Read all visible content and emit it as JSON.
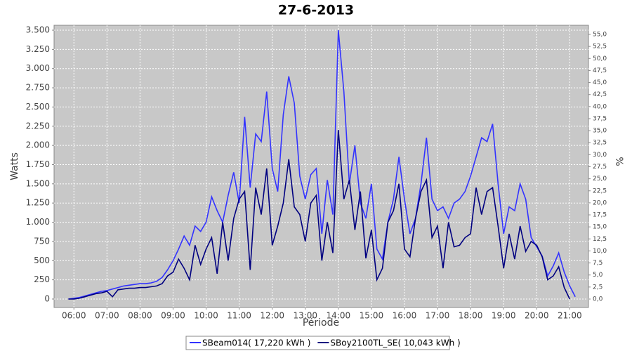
{
  "chart_data": {
    "type": "line",
    "title": "27-6-2013",
    "x_label": "Période",
    "y_label": "Watts",
    "y2_label": "%",
    "x": [
      "05:50",
      "06:00",
      "06:10",
      "06:20",
      "06:30",
      "06:40",
      "06:50",
      "07:00",
      "07:10",
      "07:20",
      "07:30",
      "07:40",
      "07:50",
      "08:00",
      "08:10",
      "08:20",
      "08:30",
      "08:40",
      "08:50",
      "09:00",
      "09:10",
      "09:20",
      "09:30",
      "09:40",
      "09:50",
      "10:00",
      "10:10",
      "10:20",
      "10:30",
      "10:40",
      "10:50",
      "11:00",
      "11:10",
      "11:20",
      "11:30",
      "11:40",
      "11:50",
      "12:00",
      "12:10",
      "12:20",
      "12:30",
      "12:40",
      "12:50",
      "13:00",
      "13:10",
      "13:20",
      "13:30",
      "13:40",
      "13:50",
      "14:00",
      "14:10",
      "14:20",
      "14:30",
      "14:40",
      "14:50",
      "15:00",
      "15:10",
      "15:20",
      "15:30",
      "15:40",
      "15:50",
      "16:00",
      "16:10",
      "16:20",
      "16:30",
      "16:40",
      "16:50",
      "17:00",
      "17:10",
      "17:20",
      "17:30",
      "17:40",
      "17:50",
      "18:00",
      "18:10",
      "18:20",
      "18:30",
      "18:40",
      "18:50",
      "19:00",
      "19:10",
      "19:20",
      "19:30",
      "19:40",
      "19:50",
      "20:00",
      "20:10",
      "20:20",
      "20:30",
      "20:40",
      "20:50",
      "21:00",
      "21:10"
    ],
    "series": [
      {
        "name": "SBeam014( 17,220 kWh )",
        "color": "#3333ff",
        "values": [
          0,
          10,
          20,
          40,
          60,
          80,
          100,
          110,
          130,
          150,
          170,
          180,
          190,
          200,
          200,
          210,
          230,
          280,
          380,
          500,
          650,
          820,
          700,
          950,
          880,
          1000,
          1330,
          1150,
          1000,
          1350,
          1650,
          1250,
          2370,
          1450,
          2150,
          2050,
          2700,
          1700,
          1400,
          2400,
          2900,
          2550,
          1600,
          1300,
          1620,
          1700,
          850,
          1550,
          1100,
          3500,
          2700,
          1500,
          2000,
          1250,
          1050,
          1500,
          650,
          520,
          1000,
          1300,
          1850,
          1300,
          850,
          1050,
          1500,
          2100,
          1300,
          1150,
          1200,
          1050,
          1250,
          1300,
          1400,
          1600,
          1850,
          2100,
          2050,
          2280,
          1500,
          850,
          1200,
          1150,
          1500,
          1300,
          800,
          680,
          560,
          300,
          430,
          600,
          350,
          170,
          30
        ]
      },
      {
        "name": "SBoy2100TL_SE( 10,043 kWh )",
        "color": "#000080",
        "values": [
          0,
          0,
          10,
          30,
          50,
          70,
          80,
          100,
          30,
          120,
          130,
          140,
          140,
          150,
          150,
          160,
          170,
          200,
          300,
          350,
          520,
          400,
          250,
          700,
          450,
          650,
          800,
          330,
          1000,
          500,
          1050,
          1300,
          1400,
          380,
          1450,
          1100,
          1700,
          700,
          950,
          1250,
          1820,
          1200,
          1100,
          750,
          1250,
          1350,
          500,
          1000,
          600,
          2200,
          1300,
          1550,
          900,
          1400,
          530,
          900,
          250,
          400,
          1000,
          1150,
          1500,
          650,
          550,
          1050,
          1400,
          1550,
          800,
          950,
          400,
          1000,
          680,
          700,
          800,
          850,
          1450,
          1100,
          1400,
          1450,
          950,
          400,
          850,
          520,
          950,
          620,
          750,
          700,
          550,
          250,
          300,
          420,
          150,
          0,
          null
        ]
      }
    ],
    "xlim": [
      "05:24",
      "21:34"
    ],
    "xticks": [
      "06:00",
      "07:00",
      "08:00",
      "09:00",
      "10:00",
      "11:00",
      "12:00",
      "13:00",
      "14:00",
      "15:00",
      "16:00",
      "17:00",
      "18:00",
      "19:00",
      "20:00",
      "21:00"
    ],
    "ylim": [
      -110,
      3564
    ],
    "yticks": [
      0,
      250,
      500,
      750,
      {
        "value": 1000,
        "label": "1.000"
      },
      {
        "value": 1250,
        "label": "1.250"
      },
      {
        "value": 1500,
        "label": "1.500"
      },
      {
        "value": 1750,
        "label": "1.750"
      },
      {
        "value": 2000,
        "label": "2.000"
      },
      {
        "value": 2250,
        "label": "2.250"
      },
      {
        "value": 2500,
        "label": "2.500"
      },
      {
        "value": 2750,
        "label": "2.750"
      },
      {
        "value": 3000,
        "label": "3.000"
      },
      {
        "value": 3250,
        "label": "3.250"
      },
      {
        "value": 3500,
        "label": "3.500"
      }
    ],
    "y2lim": [
      -1.75,
      56.9
    ],
    "y2ticks": [
      {
        "value": 0,
        "label": "0,0"
      },
      {
        "value": 2.5,
        "label": "2,5"
      },
      {
        "value": 5,
        "label": "5,0"
      },
      {
        "value": 7.5,
        "label": "7,5"
      },
      {
        "value": 10,
        "label": "10,0"
      },
      {
        "value": 12.5,
        "label": "12,5"
      },
      {
        "value": 15,
        "label": "15,0"
      },
      {
        "value": 17.5,
        "label": "17,5"
      },
      {
        "value": 20,
        "label": "20,0"
      },
      {
        "value": 22.5,
        "label": "22,5"
      },
      {
        "value": 25,
        "label": "25,0"
      },
      {
        "value": 27.5,
        "label": "27,5"
      },
      {
        "value": 30,
        "label": "30,0"
      },
      {
        "value": 32.5,
        "label": "32,5"
      },
      {
        "value": 35,
        "label": "35,0"
      },
      {
        "value": 37.5,
        "label": "37,5"
      },
      {
        "value": 40,
        "label": "40,0"
      },
      {
        "value": 42.5,
        "label": "42,5"
      },
      {
        "value": 45,
        "label": "45,0"
      },
      {
        "value": 47.5,
        "label": "47,5"
      },
      {
        "value": 50,
        "label": "50,0"
      },
      {
        "value": 52.5,
        "label": "52,5"
      },
      {
        "value": 55,
        "label": "55,0"
      }
    ],
    "grid": true,
    "legend": "bottom"
  }
}
